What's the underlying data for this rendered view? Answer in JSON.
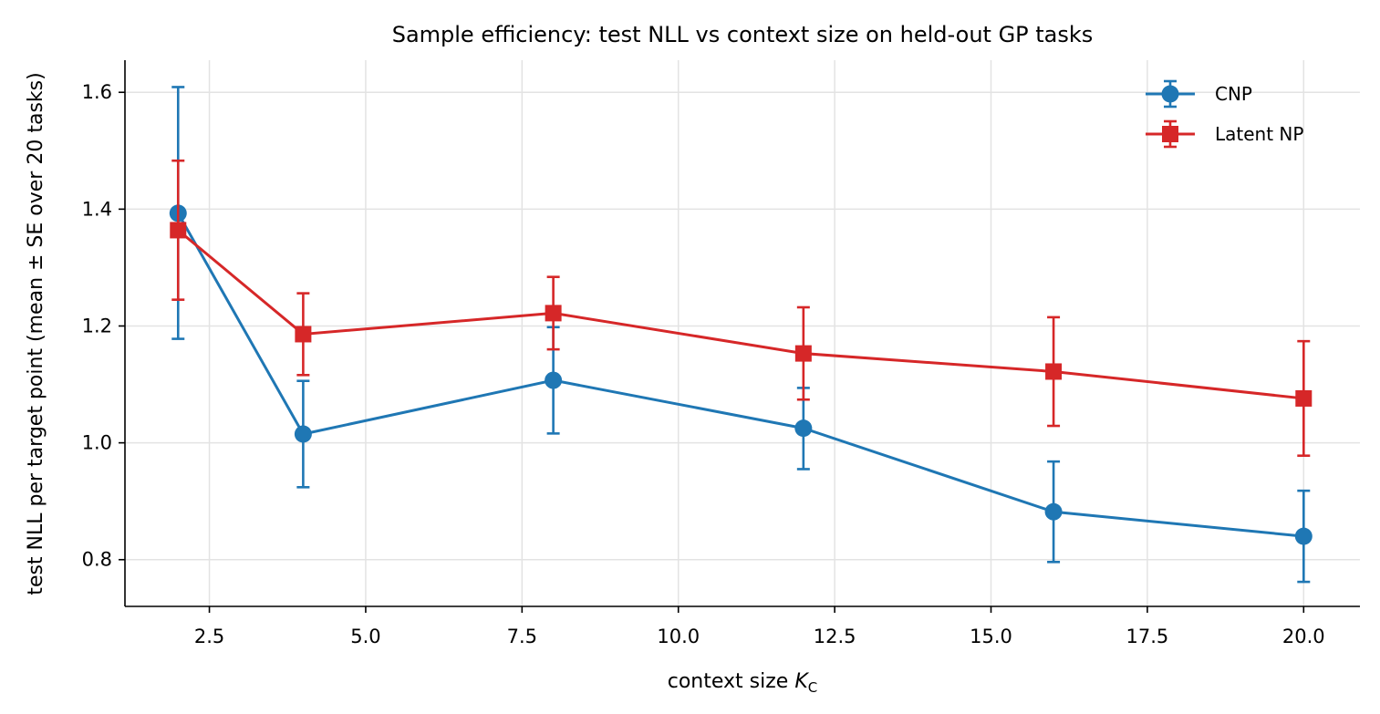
{
  "chart_data": {
    "type": "line",
    "title": "Sample efficiency: test NLL vs context size on held-out GP tasks",
    "xlabel_text": "context size ",
    "xlabel_symbol": "K",
    "xlabel_subscript": "C",
    "ylabel": "test NLL per target point (mean ± SE over 20 tasks)",
    "xlim": [
      1.15,
      20.9
    ],
    "ylim": [
      0.72,
      1.655
    ],
    "xticks": [
      2.5,
      5.0,
      7.5,
      10.0,
      12.5,
      15.0,
      17.5,
      20.0
    ],
    "xtick_labels": [
      "2.5",
      "5.0",
      "7.5",
      "10.0",
      "12.5",
      "15.0",
      "17.5",
      "20.0"
    ],
    "yticks": [
      0.8,
      1.0,
      1.2,
      1.4,
      1.6
    ],
    "ytick_labels": [
      "0.8",
      "1.0",
      "1.2",
      "1.4",
      "1.6"
    ],
    "grid": true,
    "legend_position": "top-right",
    "x": [
      2,
      4,
      8,
      12,
      16,
      20
    ],
    "series": [
      {
        "name": "CNP",
        "color": "#1f77b4",
        "marker": "circle",
        "values": [
          1.393,
          1.015,
          1.107,
          1.025,
          0.882,
          0.84
        ],
        "error_low": [
          1.178,
          0.924,
          1.016,
          0.955,
          0.796,
          0.762
        ],
        "error_high": [
          1.609,
          1.106,
          1.198,
          1.094,
          0.968,
          0.918
        ]
      },
      {
        "name": "Latent NP",
        "color": "#d62728",
        "marker": "square",
        "values": [
          1.364,
          1.186,
          1.222,
          1.153,
          1.122,
          1.076
        ],
        "error_low": [
          1.245,
          1.116,
          1.16,
          1.074,
          1.029,
          0.978
        ],
        "error_high": [
          1.483,
          1.256,
          1.284,
          1.232,
          1.215,
          1.174
        ]
      }
    ]
  }
}
